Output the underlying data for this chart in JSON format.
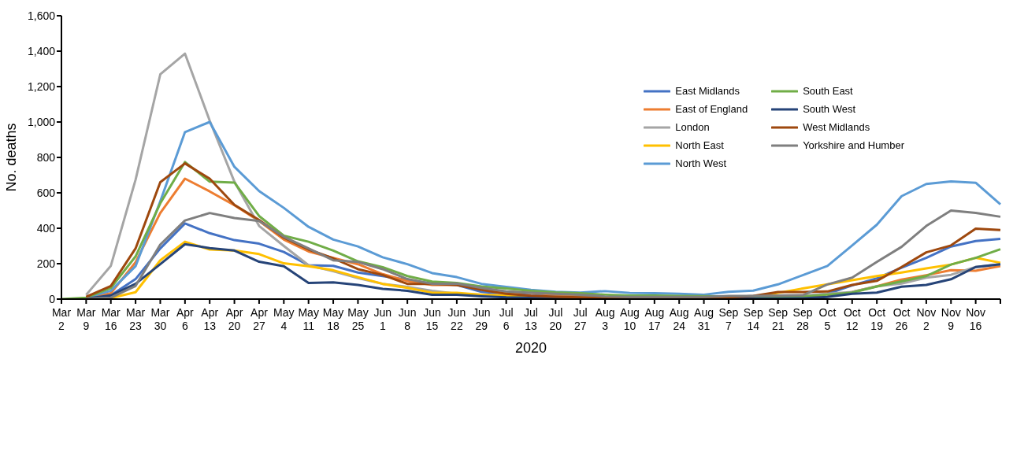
{
  "chart_data": {
    "type": "line",
    "xlabel": "2020",
    "ylabel": "No. deaths",
    "categories": [
      "Mar 2",
      "Mar 9",
      "Mar 16",
      "Mar 23",
      "Mar 30",
      "Apr 6",
      "Apr 13",
      "Apr 20",
      "Apr 27",
      "May 4",
      "May 11",
      "May 18",
      "May 25",
      "Jun 1",
      "Jun 8",
      "Jun 15",
      "Jun 22",
      "Jun 29",
      "Jul 6",
      "Jul 13",
      "Jul 20",
      "Jul 27",
      "Aug 3",
      "Aug 10",
      "Aug 17",
      "Aug 24",
      "Aug 31",
      "Sep 7",
      "Sep 14",
      "Sep 21",
      "Sep 28",
      "Oct 5",
      "Oct 12",
      "Oct 19",
      "Oct 26",
      "Nov 2",
      "Nov 9",
      "Nov 16",
      null
    ],
    "ylim": [
      0,
      1600
    ],
    "yticks": [
      0,
      200,
      400,
      600,
      800,
      {
        "value": 1000,
        "label": "1,000"
      },
      {
        "value": 1200,
        "label": "1,200"
      },
      {
        "value": 1400,
        "label": "1,400"
      },
      {
        "value": 1600,
        "label": "1,600"
      }
    ],
    "legend": "top right",
    "series": [
      {
        "name": "East Midlands",
        "color": "#4472c4",
        "values": [
          null,
          2,
          21,
          113,
          286,
          427,
          372,
          333,
          313,
          266,
          191,
          188,
          150,
          130,
          108,
          88,
          80,
          41,
          30,
          22,
          19,
          13,
          5,
          5,
          5,
          5,
          5,
          5,
          8,
          12,
          15,
          30,
          77,
          117,
          177,
          233,
          297,
          328,
          340
        ]
      },
      {
        "name": "East of England",
        "color": "#ed7d31",
        "values": [
          null,
          2,
          33,
          208,
          486,
          680,
          608,
          530,
          441,
          336,
          269,
          232,
          197,
          141,
          102,
          80,
          80,
          58,
          41,
          36,
          24,
          19,
          8,
          5,
          5,
          5,
          5,
          5,
          8,
          10,
          12,
          15,
          40,
          72,
          110,
          135,
          163,
          160,
          187
        ]
      },
      {
        "name": "London",
        "color": "#a5a5a5",
        "values": [
          null,
          24,
          188,
          674,
          1269,
          1386,
          1008,
          663,
          413,
          300,
          191,
          158,
          119,
          86,
          69,
          47,
          30,
          24,
          24,
          19,
          13,
          10,
          8,
          5,
          5,
          5,
          5,
          8,
          10,
          15,
          20,
          30,
          40,
          72,
          88,
          121,
          137,
          181,
          197
        ]
      },
      {
        "name": "North East",
        "color": "#ffc000",
        "values": [
          null,
          0,
          6,
          39,
          219,
          324,
          280,
          274,
          254,
          202,
          186,
          163,
          124,
          86,
          63,
          36,
          36,
          24,
          19,
          13,
          10,
          8,
          5,
          3,
          3,
          3,
          3,
          5,
          15,
          35,
          60,
          83,
          107,
          130,
          150,
          173,
          195,
          233,
          205
        ]
      },
      {
        "name": "North West",
        "color": "#5b9bd5",
        "values": [
          null,
          8,
          47,
          186,
          552,
          943,
          1000,
          747,
          610,
          515,
          408,
          336,
          297,
          236,
          197,
          147,
          124,
          86,
          69,
          52,
          41,
          37,
          45,
          35,
          33,
          30,
          25,
          41,
          48,
          83,
          135,
          187,
          303,
          420,
          581,
          650,
          664,
          657,
          535
        ]
      },
      {
        "name": "South East",
        "color": "#70ad47",
        "values": [
          0,
          8,
          63,
          241,
          541,
          774,
          663,
          658,
          469,
          358,
          324,
          274,
          213,
          180,
          130,
          99,
          91,
          71,
          60,
          47,
          38,
          33,
          25,
          20,
          20,
          18,
          17,
          15,
          12,
          12,
          15,
          25,
          37,
          71,
          100,
          130,
          195,
          233,
          282
        ]
      },
      {
        "name": "South West",
        "color": "#264478",
        "values": [
          null,
          2,
          21,
          86,
          197,
          310,
          288,
          274,
          211,
          186,
          91,
          94,
          80,
          58,
          47,
          24,
          24,
          16,
          10,
          8,
          6,
          6,
          3,
          3,
          3,
          3,
          3,
          3,
          3,
          3,
          5,
          12,
          30,
          37,
          70,
          80,
          112,
          181,
          197
        ]
      },
      {
        "name": "West Midlands",
        "color": "#9e480e",
        "values": [
          null,
          13,
          74,
          286,
          660,
          766,
          680,
          532,
          447,
          347,
          280,
          230,
          169,
          136,
          86,
          86,
          80,
          52,
          30,
          19,
          13,
          10,
          8,
          5,
          5,
          5,
          5,
          10,
          18,
          40,
          40,
          43,
          80,
          103,
          181,
          264,
          303,
          398,
          390
        ]
      },
      {
        "name": "Yorkshire and Humber",
        "color": "#7f7f7f",
        "values": [
          null,
          2,
          8,
          74,
          308,
          444,
          486,
          458,
          441,
          352,
          286,
          219,
          210,
          169,
          113,
          86,
          88,
          63,
          43,
          36,
          30,
          24,
          15,
          12,
          12,
          12,
          12,
          18,
          18,
          20,
          22,
          83,
          121,
          210,
          295,
          413,
          500,
          487,
          465
        ]
      }
    ]
  }
}
